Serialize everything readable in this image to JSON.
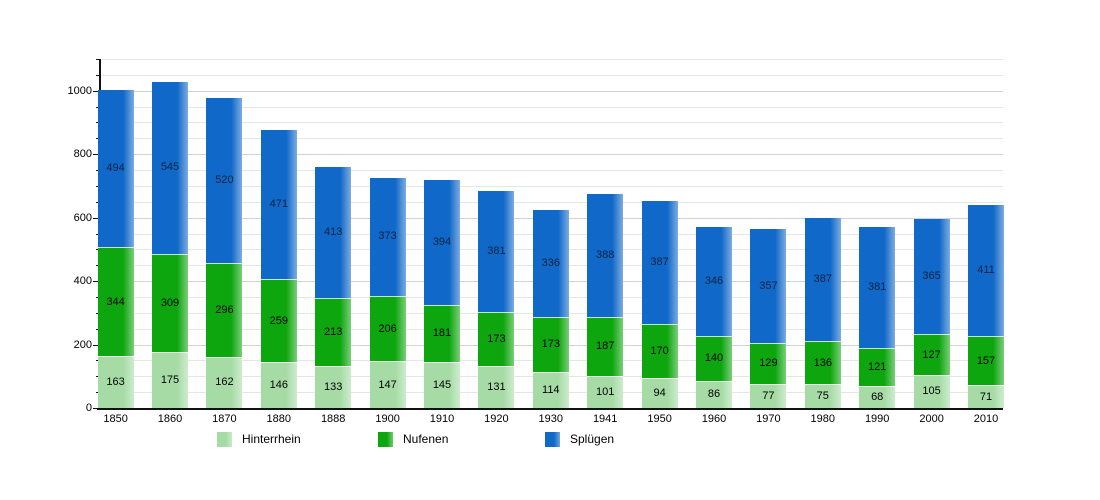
{
  "chart_data": {
    "type": "bar",
    "stacked": true,
    "title": "",
    "categories": [
      "1850",
      "1860",
      "1870",
      "1880",
      "1888",
      "1900",
      "1910",
      "1920",
      "1930",
      "1941",
      "1950",
      "1960",
      "1970",
      "1980",
      "1990",
      "2000",
      "2010"
    ],
    "series": [
      {
        "name": "Hinterrhein",
        "color": "#a6dba6",
        "values": [
          163,
          175,
          162,
          146,
          133,
          147,
          145,
          131,
          114,
          101,
          94,
          86,
          77,
          75,
          68,
          105,
          71
        ]
      },
      {
        "name": "Nufenen",
        "color": "#0ea60e",
        "values": [
          344,
          309,
          296,
          259,
          213,
          206,
          181,
          173,
          173,
          187,
          170,
          140,
          129,
          136,
          121,
          127,
          157
        ]
      },
      {
        "name": "Splügen",
        "color": "#1068c8",
        "values": [
          494,
          545,
          520,
          471,
          413,
          373,
          394,
          381,
          336,
          388,
          387,
          346,
          357,
          387,
          381,
          365,
          411
        ]
      }
    ],
    "xlabel": "",
    "ylabel": "",
    "ylim": [
      0,
      1100
    ],
    "y_ticks": [
      0,
      200,
      400,
      600,
      800,
      1000
    ],
    "y_minor_step": 50,
    "grid": "horizontal",
    "legend_position": "bottom",
    "value_labels": "inside-segments",
    "colors": {
      "axis": "#111111",
      "gridline_minor": "#e6e6e6",
      "gridline_major": "#d2d2d2",
      "background": "#ffffff",
      "label_text": "#000000"
    }
  }
}
